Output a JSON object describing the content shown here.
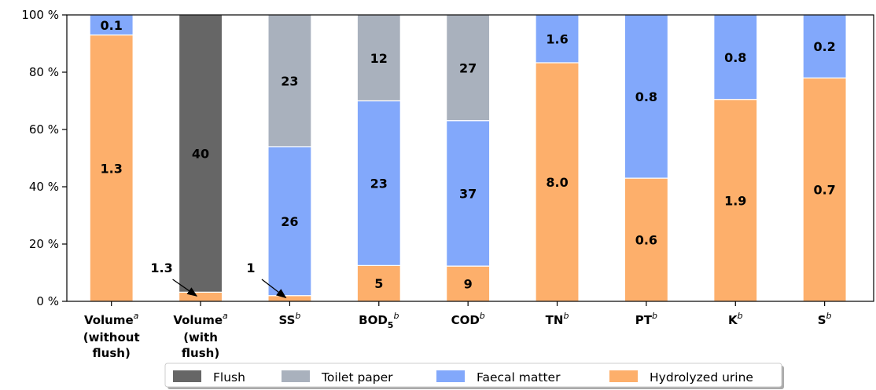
{
  "chart_data": {
    "type": "bar",
    "stacked": true,
    "normalized_percent": true,
    "ylim": [
      0,
      100
    ],
    "yticks": [
      "0 %",
      "20 %",
      "40 %",
      "60 %",
      "80 %",
      "100 %"
    ],
    "grid": false,
    "legend_position": "bottom-center",
    "categories": [
      {
        "main": "Volume",
        "sup": "a",
        "lines": [
          "(without",
          "flush)"
        ]
      },
      {
        "main": "Volume",
        "sup": "a",
        "lines": [
          "(with",
          "flush)"
        ]
      },
      {
        "main": "SS",
        "sup": "b",
        "lines": []
      },
      {
        "main": "BOD",
        "sub": "5",
        "sup": "b",
        "lines": []
      },
      {
        "main": "COD",
        "sup": "b",
        "lines": []
      },
      {
        "main": "TN",
        "sup": "b",
        "lines": []
      },
      {
        "main": "PT",
        "sup": "b",
        "lines": []
      },
      {
        "main": "K",
        "sup": "b",
        "lines": []
      },
      {
        "main": "S",
        "sup": "b",
        "lines": []
      }
    ],
    "series": [
      {
        "name": "Hydrolyzed urine",
        "color": "#fdaf6b",
        "percent": [
          93,
          3.2,
          2,
          12.5,
          12.3,
          83.3,
          43,
          70.5,
          78
        ],
        "labels": [
          "1.3",
          null,
          null,
          "5",
          "9",
          "8.0",
          "0.6",
          "1.9",
          "0.7"
        ]
      },
      {
        "name": "Faecal matter",
        "color": "#82a8fb",
        "percent": [
          7,
          0,
          52,
          57.5,
          50.8,
          16.7,
          57,
          29.5,
          22
        ],
        "labels": [
          "0.1",
          null,
          "26",
          "23",
          "37",
          "1.6",
          "0.8",
          "0.8",
          "0.2"
        ]
      },
      {
        "name": "Toilet paper",
        "color": "#a9b1bd",
        "percent": [
          0,
          0,
          46,
          30,
          36.9,
          0,
          0,
          0,
          0
        ],
        "labels": [
          null,
          null,
          "23",
          "12",
          "27",
          null,
          null,
          null,
          null
        ]
      },
      {
        "name": "Flush",
        "color": "#666666",
        "percent": [
          0,
          96.8,
          0,
          0,
          0,
          0,
          0,
          0,
          0
        ],
        "labels": [
          null,
          "40",
          null,
          null,
          null,
          null,
          null,
          null,
          null
        ]
      }
    ],
    "annotations": [
      {
        "text": "1.3",
        "category_index": 1,
        "points_to": "Hydrolyzed urine"
      },
      {
        "text": "1",
        "category_index": 2,
        "points_to": "Hydrolyzed urine"
      }
    ],
    "legend_order": [
      "Flush",
      "Toilet paper",
      "Faecal matter",
      "Hydrolyzed urine"
    ]
  }
}
